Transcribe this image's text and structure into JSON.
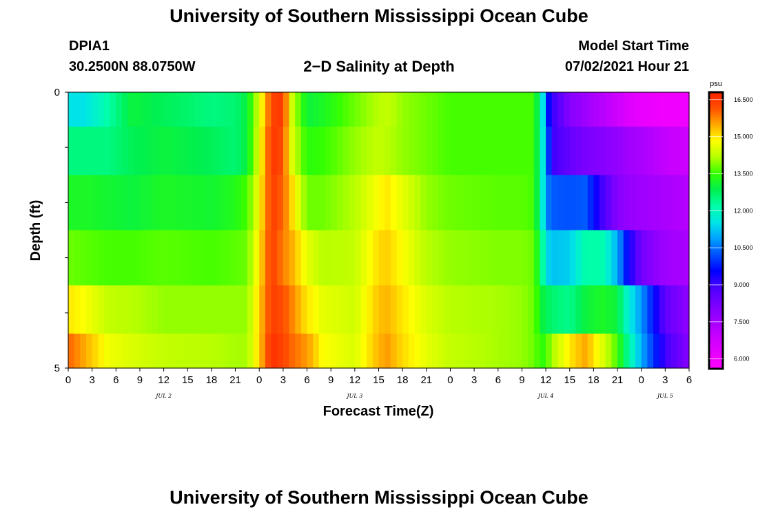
{
  "header": {
    "title": "University of Southern Mississippi Ocean Cube",
    "station_name": "DPIA1",
    "coordinates": "30.2500N  88.0750W",
    "subtitle": "2−D Salinity at Depth",
    "model_start_label": "Model Start Time",
    "model_start_time": "07/02/2021 Hour 21"
  },
  "footer": {
    "title": "University of Southern Mississippi Ocean Cube"
  },
  "chart_data": {
    "type": "heatmap",
    "title": "2−D Salinity at Depth",
    "xlabel": "Forecast Time(Z)",
    "ylabel": "Depth (ft)",
    "x_ticks": [
      "0",
      "3",
      "6",
      "9",
      "12",
      "15",
      "18",
      "21",
      "0",
      "3",
      "6",
      "9",
      "12",
      "15",
      "18",
      "21",
      "0",
      "3",
      "6",
      "9",
      "12",
      "15",
      "18",
      "21",
      "0",
      "3",
      "6"
    ],
    "date_labels": [
      {
        "label": "JUL 2",
        "tick_index": 4
      },
      {
        "label": "JUL 3",
        "tick_index": 12
      },
      {
        "label": "JUL 4",
        "tick_index": 20
      },
      {
        "label": "JUL 5",
        "tick_index": 25
      }
    ],
    "y_ticks": [
      "0",
      "5"
    ],
    "y_range": [
      0,
      5
    ],
    "x_range_hours": [
      0,
      78
    ],
    "colorbar": {
      "unit": "psu",
      "range": [
        5.6,
        16.8
      ],
      "ticks": [
        "16.500",
        "15.000",
        "13.500",
        "12.000",
        "10.500",
        "9.000",
        "7.500",
        "6.000"
      ],
      "tick_values": [
        16.5,
        15.0,
        13.5,
        12.0,
        10.5,
        9.0,
        7.5,
        6.0
      ]
    },
    "depth_rows": [
      0.25,
      1.0,
      2.0,
      3.0,
      4.0,
      4.75
    ],
    "hour_keyframes": [
      0,
      2,
      5,
      8,
      12,
      18,
      21,
      22.5,
      24,
      25.5,
      27,
      28,
      30,
      32,
      36,
      39,
      40,
      42,
      45,
      48,
      54,
      57,
      58.5,
      59.5,
      60,
      61,
      63,
      65,
      67,
      69,
      70,
      72,
      75,
      78
    ],
    "values": [
      [
        11.5,
        11.5,
        12.2,
        13.0,
        12.8,
        12.5,
        12.6,
        13.0,
        14.5,
        16.3,
        16.5,
        14.5,
        13.0,
        13.2,
        13.8,
        14.2,
        14.3,
        14.0,
        13.8,
        13.6,
        13.6,
        13.6,
        13.6,
        12.0,
        10.0,
        9.0,
        8.0,
        7.6,
        7.2,
        6.8,
        6.5,
        6.2,
        6.0,
        6.0
      ],
      [
        12.5,
        12.5,
        12.5,
        12.8,
        13.0,
        12.8,
        12.6,
        13.0,
        14.6,
        16.5,
        16.2,
        14.6,
        13.4,
        13.5,
        14.0,
        14.3,
        14.2,
        14.0,
        13.8,
        13.6,
        13.6,
        13.6,
        13.6,
        12.0,
        10.5,
        9.0,
        8.5,
        8.2,
        8.0,
        7.8,
        7.6,
        7.4,
        7.0,
        6.8
      ],
      [
        13.2,
        13.2,
        13.1,
        13.0,
        13.2,
        13.1,
        13.3,
        13.6,
        14.8,
        16.4,
        16.0,
        15.2,
        13.8,
        13.8,
        14.2,
        14.8,
        15.0,
        14.6,
        14.0,
        13.8,
        13.7,
        13.7,
        13.6,
        12.0,
        10.6,
        10.3,
        10.2,
        10.3,
        9.0,
        8.0,
        7.8,
        7.6,
        7.4,
        7.2
      ],
      [
        13.8,
        13.7,
        13.6,
        13.6,
        13.7,
        13.6,
        13.7,
        13.8,
        15.0,
        16.4,
        15.8,
        15.5,
        14.6,
        14.2,
        14.3,
        15.1,
        15.2,
        14.8,
        14.2,
        14.0,
        13.9,
        13.9,
        13.8,
        12.5,
        11.4,
        11.2,
        11.3,
        12.2,
        12.2,
        11.0,
        9.8,
        8.3,
        7.6,
        7.4
      ],
      [
        15.0,
        14.8,
        14.3,
        14.2,
        14.0,
        14.0,
        14.0,
        14.0,
        15.2,
        16.4,
        16.2,
        15.8,
        15.0,
        14.6,
        14.4,
        15.3,
        15.4,
        15.0,
        14.5,
        14.2,
        14.1,
        14.0,
        13.8,
        13.0,
        12.8,
        12.6,
        12.4,
        13.0,
        13.2,
        13.0,
        12.0,
        10.8,
        8.6,
        7.8
      ],
      [
        16.0,
        15.5,
        14.7,
        14.5,
        14.3,
        14.2,
        14.1,
        14.1,
        15.2,
        16.6,
        16.3,
        16.0,
        15.6,
        14.8,
        14.5,
        15.4,
        15.6,
        15.1,
        14.6,
        14.3,
        14.1,
        14.0,
        13.8,
        13.4,
        13.6,
        14.2,
        15.0,
        15.5,
        14.6,
        13.6,
        12.6,
        11.0,
        9.0,
        8.0
      ]
    ]
  }
}
